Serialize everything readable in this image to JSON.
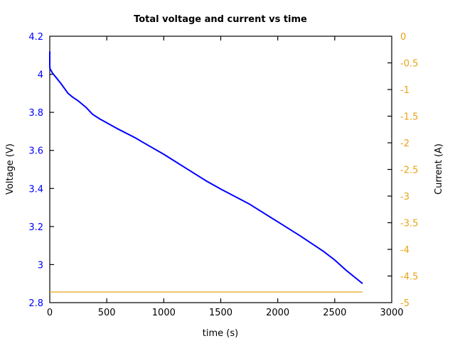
{
  "chart_data": {
    "type": "line",
    "title": "Total voltage and current vs time",
    "xlabel": "time (s)",
    "ylabel": "Voltage (V)",
    "y2label": "Current (A)",
    "xlim": [
      0,
      3000
    ],
    "ylim": [
      2.8,
      4.2
    ],
    "y2lim": [
      -5,
      0
    ],
    "grid": false,
    "legend": null,
    "x_ticks": [
      0,
      500,
      1000,
      1500,
      2000,
      2500,
      3000
    ],
    "x_tick_labels": [
      "0",
      "500",
      "1000",
      "1500",
      "2000",
      "2500",
      "3000"
    ],
    "y_ticks": [
      2.8,
      3.0,
      3.2,
      3.4,
      3.6,
      3.8,
      4.0,
      4.2
    ],
    "y_tick_labels": [
      "2.8",
      "3",
      "3.2",
      "3.4",
      "3.6",
      "3.8",
      "4",
      "4.2"
    ],
    "y2_ticks": [
      -5,
      -4.5,
      -4,
      -3.5,
      -3,
      -2.5,
      -2,
      -1.5,
      -1,
      -0.5,
      0
    ],
    "y2_tick_labels": [
      "-5",
      "-4.5",
      "-4",
      "-3.5",
      "-3",
      "-2.5",
      "-2",
      "-1.5",
      "-1",
      "-0.5",
      "0"
    ],
    "series": [
      {
        "name": "Voltage",
        "axis": "left",
        "color": "#0000ff",
        "x": [
          0,
          0,
          2,
          25,
          60,
          100,
          160,
          200,
          250,
          320,
          375,
          440,
          500,
          600,
          750,
          810,
          1000,
          1185,
          1372,
          1500,
          1746,
          2000,
          2200,
          2400,
          2500,
          2600,
          2744
        ],
        "y": [
          4.12,
          4.04,
          4.03,
          4.005,
          3.98,
          3.95,
          3.9,
          3.88,
          3.86,
          3.825,
          3.79,
          3.765,
          3.745,
          3.712,
          3.666,
          3.645,
          3.58,
          3.51,
          3.44,
          3.397,
          3.32,
          3.225,
          3.15,
          3.07,
          3.024,
          2.97,
          2.9
        ]
      },
      {
        "name": "Current",
        "axis": "right",
        "color": "#e8a317",
        "x": [
          0,
          2744
        ],
        "y": [
          -4.8,
          -4.8
        ]
      }
    ]
  },
  "colors": {
    "voltage": "#0000ff",
    "current": "#e8a317",
    "axis": "#000000"
  }
}
